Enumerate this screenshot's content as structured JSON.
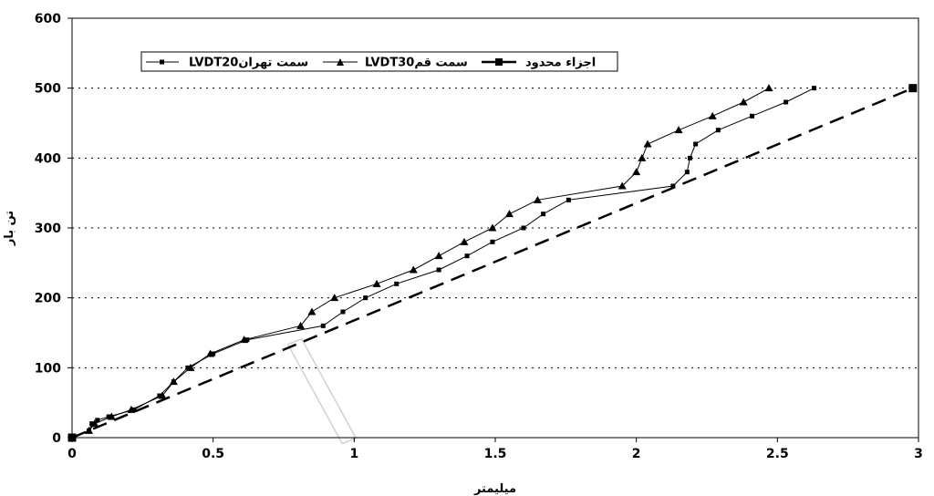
{
  "chart_data": {
    "type": "line",
    "title": "",
    "xlabel": "میلیمتر",
    "ylabel": "تن بار",
    "xlim": [
      0,
      3
    ],
    "ylim": [
      0,
      600
    ],
    "xticks": [
      0,
      0.5,
      1,
      1.5,
      2,
      2.5,
      3
    ],
    "xtick_labels": [
      "0",
      "0.5",
      "1",
      "1.5",
      "2",
      "2.5",
      "3"
    ],
    "yticks": [
      0,
      100,
      200,
      300,
      400,
      500,
      600
    ],
    "ytick_labels": [
      "0",
      "100",
      "200",
      "300",
      "400",
      "500",
      "600"
    ],
    "grid": "horizontal-dotted",
    "legend_position": "top-left",
    "series": [
      {
        "name": "LVDT20سمت تهران",
        "marker": "square-small",
        "line": "solid",
        "color": "#000000",
        "x": [
          0,
          0.06,
          0.07,
          0.09,
          0.13,
          0.22,
          0.31,
          0.36,
          0.41,
          0.5,
          0.62,
          0.89,
          0.96,
          1.04,
          1.15,
          1.3,
          1.4,
          1.49,
          1.6,
          1.67,
          1.76,
          2.13,
          2.18,
          2.19,
          2.21,
          2.29,
          2.41,
          2.53,
          2.63
        ],
        "y": [
          0,
          10,
          20,
          25,
          30,
          40,
          60,
          80,
          100,
          120,
          140,
          160,
          180,
          200,
          220,
          240,
          260,
          280,
          300,
          320,
          340,
          360,
          380,
          400,
          420,
          440,
          460,
          480,
          500
        ]
      },
      {
        "name": "LVDT30سمت قم",
        "marker": "triangle",
        "line": "solid",
        "color": "#000000",
        "x": [
          0,
          0.06,
          0.08,
          0.14,
          0.21,
          0.32,
          0.36,
          0.42,
          0.49,
          0.61,
          0.81,
          0.85,
          0.93,
          1.08,
          1.21,
          1.3,
          1.39,
          1.49,
          1.55,
          1.65,
          1.95,
          2.0,
          2.02,
          2.04,
          2.15,
          2.27,
          2.38,
          2.47
        ],
        "y": [
          0,
          10,
          20,
          30,
          40,
          60,
          80,
          100,
          120,
          140,
          160,
          180,
          200,
          220,
          240,
          260,
          280,
          300,
          320,
          340,
          360,
          380,
          400,
          420,
          440,
          460,
          480,
          500
        ]
      },
      {
        "name": "اجزاء محدود",
        "marker": "square-large-endpoints",
        "line": "dashed",
        "color": "#000000",
        "x": [
          0,
          2.98
        ],
        "y": [
          0,
          500
        ]
      }
    ]
  }
}
